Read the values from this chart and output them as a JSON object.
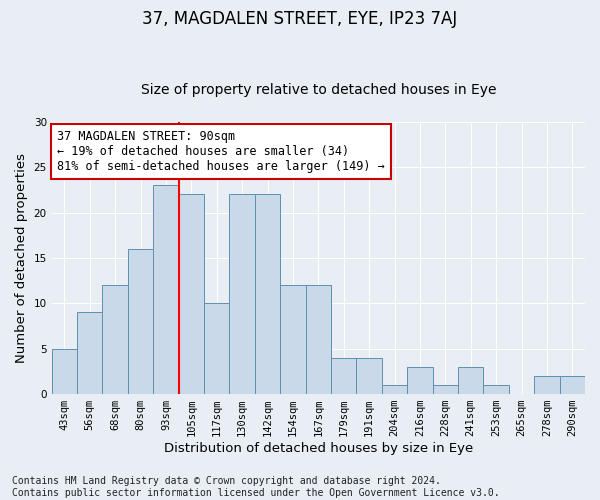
{
  "title": "37, MAGDALEN STREET, EYE, IP23 7AJ",
  "subtitle": "Size of property relative to detached houses in Eye",
  "xlabel": "Distribution of detached houses by size in Eye",
  "ylabel": "Number of detached properties",
  "categories": [
    "43sqm",
    "56sqm",
    "68sqm",
    "80sqm",
    "93sqm",
    "105sqm",
    "117sqm",
    "130sqm",
    "142sqm",
    "154sqm",
    "167sqm",
    "179sqm",
    "191sqm",
    "204sqm",
    "216sqm",
    "228sqm",
    "241sqm",
    "253sqm",
    "265sqm",
    "278sqm",
    "290sqm"
  ],
  "values": [
    5,
    9,
    12,
    16,
    23,
    22,
    10,
    22,
    22,
    12,
    12,
    4,
    4,
    1,
    3,
    1,
    3,
    1,
    0,
    2,
    2
  ],
  "bar_color": "#c9d9ea",
  "bar_edge_color": "#6090b0",
  "red_line_x": 4.5,
  "ylim": [
    0,
    30
  ],
  "yticks": [
    0,
    5,
    10,
    15,
    20,
    25,
    30
  ],
  "annotation_text": "37 MAGDALEN STREET: 90sqm\n← 19% of detached houses are smaller (34)\n81% of semi-detached houses are larger (149) →",
  "annotation_box_facecolor": "#ffffff",
  "annotation_box_edgecolor": "#cc0000",
  "footer_line1": "Contains HM Land Registry data © Crown copyright and database right 2024.",
  "footer_line2": "Contains public sector information licensed under the Open Government Licence v3.0.",
  "bg_color": "#e8eef4",
  "plot_bg_color": "#e8eef4",
  "title_fontsize": 12,
  "subtitle_fontsize": 10,
  "axis_label_fontsize": 9.5,
  "tick_fontsize": 7.5,
  "annotation_fontsize": 8.5,
  "footer_fontsize": 7
}
